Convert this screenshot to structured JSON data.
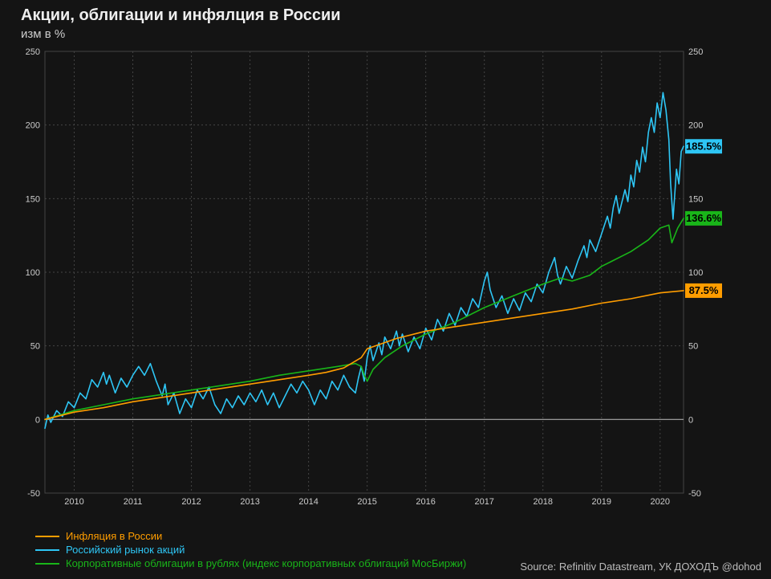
{
  "title": "Акции, облигации и инфялция в России",
  "subtitle": "изм в %",
  "source": "Source: Refinitiv Datastream, УК ДОХОДЪ @dohod",
  "chart": {
    "type": "line",
    "background_color": "#141414",
    "grid_color": "#444444",
    "zero_line_color": "#aaaaaa",
    "axis_text_color": "#cccccc",
    "title_fontsize": 20,
    "subtitle_fontsize": 15,
    "axis_fontsize": 11,
    "ylim": [
      -50,
      250
    ],
    "ytick_step": 50,
    "xlim": [
      2009.5,
      2020.4
    ],
    "xticks": [
      2010,
      2011,
      2012,
      2013,
      2014,
      2015,
      2016,
      2017,
      2018,
      2019,
      2020
    ],
    "line_width": 1.6,
    "plot_padding_right": 40
  },
  "series": {
    "inflation": {
      "label": "Инфляция в России",
      "color": "#ff9d00",
      "end_label": "87.5%",
      "end_label_bg": "#ff9d00",
      "end_label_color": "#000000",
      "data": [
        [
          2009.5,
          0
        ],
        [
          2010.0,
          5
        ],
        [
          2010.5,
          8
        ],
        [
          2011.0,
          12
        ],
        [
          2011.5,
          15
        ],
        [
          2012.0,
          18
        ],
        [
          2012.5,
          21
        ],
        [
          2013.0,
          24
        ],
        [
          2013.5,
          27
        ],
        [
          2014.0,
          30
        ],
        [
          2014.3,
          32
        ],
        [
          2014.6,
          35
        ],
        [
          2014.9,
          42
        ],
        [
          2015.0,
          48
        ],
        [
          2015.5,
          55
        ],
        [
          2016.0,
          60
        ],
        [
          2016.5,
          63
        ],
        [
          2017.0,
          66
        ],
        [
          2017.5,
          69
        ],
        [
          2018.0,
          72
        ],
        [
          2018.5,
          75
        ],
        [
          2019.0,
          79
        ],
        [
          2019.5,
          82
        ],
        [
          2020.0,
          86
        ],
        [
          2020.4,
          87.5
        ]
      ]
    },
    "stocks": {
      "label": "Российский рынок акций",
      "color": "#2ec6f5",
      "end_label": "185.5%",
      "end_label_bg": "#2ec6f5",
      "end_label_color": "#000000",
      "data": [
        [
          2009.5,
          -6
        ],
        [
          2009.55,
          3
        ],
        [
          2009.6,
          -2
        ],
        [
          2009.7,
          6
        ],
        [
          2009.8,
          2
        ],
        [
          2009.9,
          12
        ],
        [
          2010.0,
          8
        ],
        [
          2010.1,
          18
        ],
        [
          2010.2,
          14
        ],
        [
          2010.3,
          27
        ],
        [
          2010.4,
          22
        ],
        [
          2010.5,
          32
        ],
        [
          2010.55,
          24
        ],
        [
          2010.6,
          30
        ],
        [
          2010.7,
          18
        ],
        [
          2010.8,
          28
        ],
        [
          2010.9,
          22
        ],
        [
          2011.0,
          30
        ],
        [
          2011.1,
          36
        ],
        [
          2011.2,
          30
        ],
        [
          2011.3,
          38
        ],
        [
          2011.35,
          32
        ],
        [
          2011.4,
          26
        ],
        [
          2011.5,
          16
        ],
        [
          2011.55,
          24
        ],
        [
          2011.6,
          10
        ],
        [
          2011.7,
          18
        ],
        [
          2011.8,
          4
        ],
        [
          2011.9,
          14
        ],
        [
          2012.0,
          8
        ],
        [
          2012.1,
          20
        ],
        [
          2012.2,
          14
        ],
        [
          2012.3,
          22
        ],
        [
          2012.4,
          10
        ],
        [
          2012.5,
          4
        ],
        [
          2012.6,
          14
        ],
        [
          2012.7,
          8
        ],
        [
          2012.8,
          16
        ],
        [
          2012.9,
          10
        ],
        [
          2013.0,
          18
        ],
        [
          2013.1,
          12
        ],
        [
          2013.2,
          20
        ],
        [
          2013.3,
          10
        ],
        [
          2013.4,
          18
        ],
        [
          2013.5,
          8
        ],
        [
          2013.6,
          16
        ],
        [
          2013.7,
          24
        ],
        [
          2013.8,
          18
        ],
        [
          2013.9,
          26
        ],
        [
          2014.0,
          20
        ],
        [
          2014.1,
          10
        ],
        [
          2014.2,
          20
        ],
        [
          2014.3,
          14
        ],
        [
          2014.4,
          26
        ],
        [
          2014.5,
          20
        ],
        [
          2014.6,
          30
        ],
        [
          2014.7,
          22
        ],
        [
          2014.8,
          18
        ],
        [
          2014.85,
          28
        ],
        [
          2014.9,
          36
        ],
        [
          2014.95,
          26
        ],
        [
          2015.0,
          42
        ],
        [
          2015.05,
          50
        ],
        [
          2015.1,
          40
        ],
        [
          2015.2,
          52
        ],
        [
          2015.25,
          44
        ],
        [
          2015.3,
          56
        ],
        [
          2015.4,
          48
        ],
        [
          2015.5,
          60
        ],
        [
          2015.55,
          50
        ],
        [
          2015.6,
          58
        ],
        [
          2015.7,
          46
        ],
        [
          2015.8,
          56
        ],
        [
          2015.9,
          48
        ],
        [
          2016.0,
          62
        ],
        [
          2016.1,
          54
        ],
        [
          2016.2,
          68
        ],
        [
          2016.3,
          60
        ],
        [
          2016.4,
          72
        ],
        [
          2016.5,
          64
        ],
        [
          2016.6,
          76
        ],
        [
          2016.7,
          70
        ],
        [
          2016.8,
          82
        ],
        [
          2016.9,
          76
        ],
        [
          2017.0,
          94
        ],
        [
          2017.05,
          100
        ],
        [
          2017.1,
          88
        ],
        [
          2017.2,
          76
        ],
        [
          2017.3,
          84
        ],
        [
          2017.4,
          72
        ],
        [
          2017.5,
          82
        ],
        [
          2017.6,
          74
        ],
        [
          2017.7,
          86
        ],
        [
          2017.8,
          80
        ],
        [
          2017.9,
          92
        ],
        [
          2018.0,
          86
        ],
        [
          2018.1,
          100
        ],
        [
          2018.2,
          110
        ],
        [
          2018.25,
          98
        ],
        [
          2018.3,
          92
        ],
        [
          2018.4,
          104
        ],
        [
          2018.5,
          96
        ],
        [
          2018.6,
          108
        ],
        [
          2018.7,
          118
        ],
        [
          2018.75,
          110
        ],
        [
          2018.8,
          122
        ],
        [
          2018.9,
          114
        ],
        [
          2019.0,
          126
        ],
        [
          2019.1,
          138
        ],
        [
          2019.15,
          130
        ],
        [
          2019.2,
          144
        ],
        [
          2019.25,
          152
        ],
        [
          2019.3,
          140
        ],
        [
          2019.4,
          156
        ],
        [
          2019.45,
          148
        ],
        [
          2019.5,
          166
        ],
        [
          2019.55,
          158
        ],
        [
          2019.6,
          176
        ],
        [
          2019.65,
          168
        ],
        [
          2019.7,
          185
        ],
        [
          2019.75,
          175
        ],
        [
          2019.8,
          195
        ],
        [
          2019.85,
          205
        ],
        [
          2019.9,
          195
        ],
        [
          2019.95,
          215
        ],
        [
          2020.0,
          205
        ],
        [
          2020.05,
          222
        ],
        [
          2020.1,
          210
        ],
        [
          2020.15,
          190
        ],
        [
          2020.18,
          160
        ],
        [
          2020.22,
          136
        ],
        [
          2020.28,
          170
        ],
        [
          2020.32,
          160
        ],
        [
          2020.36,
          182
        ],
        [
          2020.4,
          185.5
        ]
      ]
    },
    "bonds": {
      "label": "Корпоративные облигации в рублях (индекс корпоративных облигаций МосБиржи)",
      "color": "#19b519",
      "end_label": "136.6%",
      "end_label_bg": "#19b519",
      "end_label_color": "#000000",
      "data": [
        [
          2009.5,
          0
        ],
        [
          2010.0,
          6
        ],
        [
          2010.5,
          10
        ],
        [
          2011.0,
          14
        ],
        [
          2011.5,
          17
        ],
        [
          2012.0,
          20
        ],
        [
          2012.5,
          23
        ],
        [
          2013.0,
          26
        ],
        [
          2013.5,
          30
        ],
        [
          2014.0,
          33
        ],
        [
          2014.5,
          36
        ],
        [
          2014.8,
          38
        ],
        [
          2014.9,
          36
        ],
        [
          2014.95,
          30
        ],
        [
          2015.0,
          26
        ],
        [
          2015.1,
          34
        ],
        [
          2015.3,
          42
        ],
        [
          2015.6,
          50
        ],
        [
          2016.0,
          58
        ],
        [
          2016.5,
          66
        ],
        [
          2017.0,
          76
        ],
        [
          2017.5,
          84
        ],
        [
          2018.0,
          92
        ],
        [
          2018.3,
          96
        ],
        [
          2018.5,
          94
        ],
        [
          2018.8,
          98
        ],
        [
          2019.0,
          104
        ],
        [
          2019.5,
          114
        ],
        [
          2019.8,
          122
        ],
        [
          2020.0,
          130
        ],
        [
          2020.15,
          132
        ],
        [
          2020.2,
          120
        ],
        [
          2020.3,
          130
        ],
        [
          2020.4,
          136.6
        ]
      ]
    }
  },
  "legend_order": [
    "inflation",
    "stocks",
    "bonds"
  ]
}
